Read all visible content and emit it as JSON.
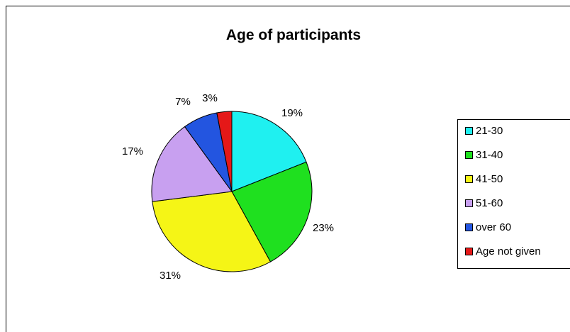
{
  "chart_data": {
    "type": "pie",
    "title": "Age of participants",
    "slices": [
      {
        "label": "21-30",
        "value": 19,
        "pct_label": "19%",
        "color": "#1FF0F0"
      },
      {
        "label": "31-40",
        "value": 23,
        "pct_label": "23%",
        "color": "#1FE01F"
      },
      {
        "label": "41-50",
        "value": 31,
        "pct_label": "31%",
        "color": "#F5F516"
      },
      {
        "label": "51-60",
        "value": 17,
        "pct_label": "17%",
        "color": "#C8A0F0"
      },
      {
        "label": "over 60",
        "value": 7,
        "pct_label": "7%",
        "color": "#2355E0"
      },
      {
        "label": "Age not given",
        "value": 3,
        "pct_label": "3%",
        "color": "#E51818"
      }
    ],
    "legend_position": "right"
  }
}
